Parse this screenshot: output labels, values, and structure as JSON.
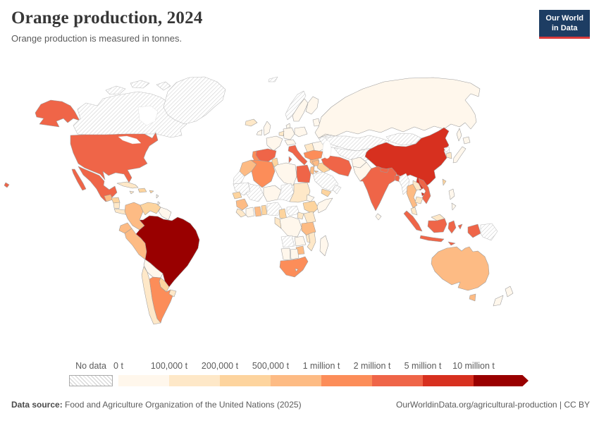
{
  "header": {
    "title": "Orange production, 2024",
    "subtitle": "Orange production is measured in tonnes."
  },
  "logo": {
    "line1": "Our World",
    "line2": "in Data",
    "bg": "#1d3d63",
    "accent": "#d93b3b"
  },
  "legend": {
    "no_data_label": "No data",
    "tick_labels": [
      "0 t",
      "100,000 t",
      "200,000 t",
      "500,000 t",
      "1 million t",
      "2 million t",
      "5 million t",
      "10 million t"
    ],
    "bucket_colors": [
      "#fff7ec",
      "#fee8c8",
      "#fdd49e",
      "#fdbb84",
      "#fc8d59",
      "#ef6548",
      "#d7301f",
      "#990000"
    ]
  },
  "footer": {
    "source_label": "Data source:",
    "source_text": " Food and Agriculture Organization of the United Nations (2025)",
    "right_text": "OurWorldinData.org/agricultural-production | CC BY"
  },
  "chart_data": {
    "type": "choropleth-map",
    "title": "Orange production, 2024",
    "unit": "tonnes",
    "bins": [
      "0 t",
      "100,000 t",
      "200,000 t",
      "500,000 t",
      "1 million t",
      "2 million t",
      "5 million t",
      "10 million t"
    ],
    "no_data_style": "hatched"
  },
  "map": {
    "ocean": "#ffffff",
    "border": "#9b9b9b",
    "countries": {
      "canada": "nd",
      "greenland": "nd",
      "svalbard": "nd",
      "norway": "nd",
      "ukraine": "nd",
      "kazakhstan": "nd",
      "central-asia": "nd",
      "mongolia": "nd",
      "north-korea": "nd",
      "saudi-arabia": "nd",
      "oman": "nd",
      "myanmar": "nd",
      "papua-new-guinea": "nd",
      "western-sahara": "nd",
      "mauritania": "nd",
      "mali": "nd",
      "chad": "nd",
      "nigeria": "nd",
      "central-african-republic": "nd",
      "angola": "nd",
      "brazil": 7,
      "china": 6,
      "usa": 5,
      "mexico": 5,
      "india": 5,
      "iran": 5,
      "egypt": 5,
      "spain": 5,
      "italy": 5,
      "indonesia": 5,
      "vietnam": 5,
      "nepal": 5,
      "bangladesh": 5,
      "turkey": 4,
      "algeria": 4,
      "south-africa": 4,
      "argentina": 4,
      "portugal": 4,
      "morocco": 3,
      "australia": 3,
      "thailand": 3,
      "colombia": 3,
      "peru": 3,
      "ecuador": 3,
      "guinea": 3,
      "greece": 3,
      "syria": 3,
      "tanzania": 3,
      "zimbabwe": 3,
      "guatemala": 3,
      "ghana": 3,
      "israel-jordan": 3,
      "venezuela": 2,
      "paraguay": 2,
      "tunisia": 2,
      "iraq": 2,
      "yemen": 2,
      "senegal": 2,
      "taiwan": 2,
      "hispaniola": 2,
      "honduras": 2,
      "ethiopia": 2,
      "cameroon": 2,
      "togo-benin": 2,
      "puerto-rico": 2,
      "chile": 1,
      "uruguay": 1,
      "cuba": 1,
      "jamaica": 1,
      "nicaragua": 1,
      "costa-rica-panama": 1,
      "iceland": 1,
      "laos": 1,
      "cambodia": 1,
      "south-korea": 1,
      "kenya": 1,
      "uganda": 1,
      "mozambique": 1,
      "malawi": 1,
      "sudan": 1,
      "gabon-congo": 1,
      "sierra-leone-liberia": 1,
      "benelux": 1,
      "balkans": 1,
      "malaysia": 1,
      "russia": 0,
      "france": 0,
      "germany": 0,
      "poland": 0,
      "uk": 0,
      "ireland": 0,
      "sweden": 0,
      "finland": 0,
      "denmark": 0,
      "central-europe": 0,
      "romania-bulgaria": 0,
      "belarus": 0,
      "baltics": 0,
      "japan": 0,
      "philippines": 0,
      "afghanistan": 0,
      "pakistan": 0,
      "sri-lanka": 0,
      "libya": 0,
      "niger": 0,
      "drc": 0,
      "somalia": 0,
      "madagascar": 0,
      "namibia": 0,
      "botswana": 0,
      "zambia": 0,
      "lesotho": 0,
      "bolivia": 0,
      "guyanas": 0,
      "ivory-coast": 0,
      "eritrea": 0,
      "new-zealand": 0,
      "antilles": 0
    }
  }
}
